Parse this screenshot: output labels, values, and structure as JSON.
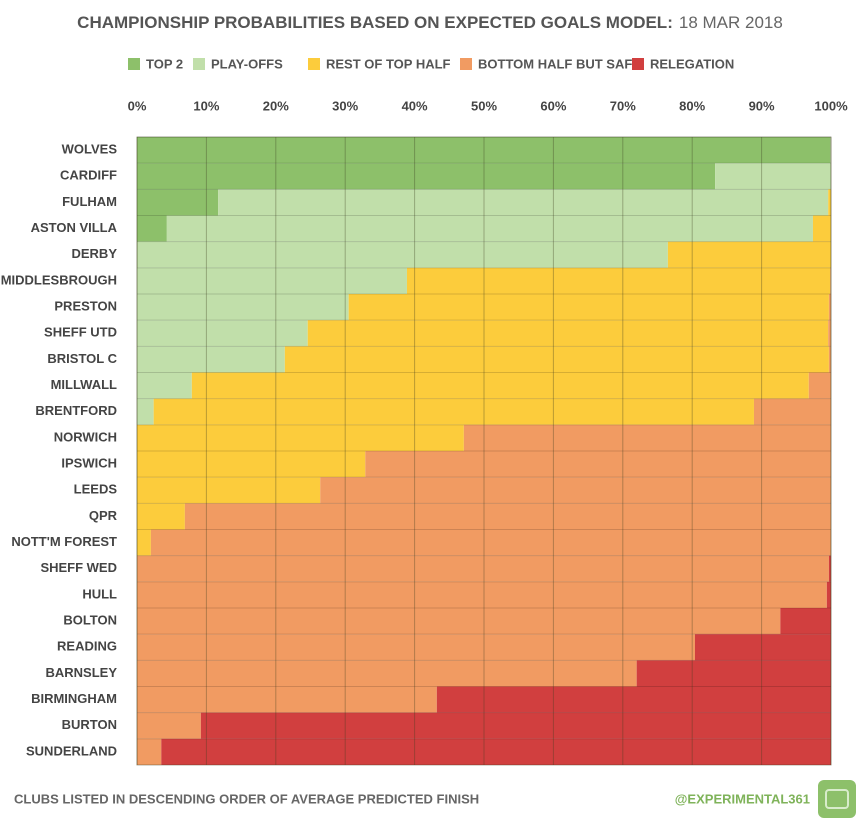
{
  "chart_data": {
    "type": "stacked-bar-horizontal",
    "title": "CHAMPIONSHIP PROBABILITIES BASED ON EXPECTED GOALS MODEL:",
    "subtitle": "18 MAR 2018",
    "footnote": "CLUBS LISTED IN DESCENDING ORDER OF AVERAGE PREDICTED FINISH",
    "credit": "@EXPERIMENTAL361",
    "categories": [
      "WOLVES",
      "CARDIFF",
      "FULHAM",
      "ASTON VILLA",
      "DERBY",
      "MIDDLESBROUGH",
      "PRESTON",
      "SHEFF UTD",
      "BRISTOL C",
      "MILLWALL",
      "BRENTFORD",
      "NORWICH",
      "IPSWICH",
      "LEEDS",
      "QPR",
      "NOTT'M FOREST",
      "SHEFF WED",
      "HULL",
      "BOLTON",
      "READING",
      "BARNSLEY",
      "BIRMINGHAM",
      "BURTON",
      "SUNDERLAND"
    ],
    "series": [
      {
        "name": "TOP 2",
        "color": "#8dc06a",
        "values": [
          99.9,
          83.3,
          11.7,
          4.3,
          0.1,
          0,
          0,
          0,
          0,
          0,
          0,
          0,
          0,
          0,
          0,
          0,
          0,
          0,
          0,
          0,
          0,
          0,
          0,
          0
        ]
      },
      {
        "name": "PLAY-OFFS",
        "color": "#c1dfaa",
        "values": [
          0.1,
          16.7,
          87.9,
          93.1,
          76.4,
          38.9,
          30.5,
          24.6,
          21.3,
          7.9,
          2.4,
          0,
          0,
          0,
          0,
          0,
          0,
          0,
          0,
          0,
          0,
          0,
          0,
          0
        ]
      },
      {
        "name": "REST OF TOP HALF",
        "color": "#fccc3c",
        "values": [
          0,
          0,
          0.4,
          2.6,
          23.5,
          61.0,
          69.2,
          75.0,
          78.4,
          88.9,
          86.5,
          47.1,
          32.9,
          26.4,
          6.9,
          2.0,
          0,
          0,
          0,
          0,
          0,
          0,
          0,
          0
        ]
      },
      {
        "name": "BOTTOM HALF BUT SAFE",
        "color": "#f19b62",
        "values": [
          0,
          0,
          0,
          0,
          0,
          0.1,
          0.3,
          0.4,
          0.3,
          3.2,
          11.1,
          52.9,
          67.1,
          73.6,
          93.1,
          98.0,
          99.7,
          99.4,
          92.7,
          80.4,
          72.0,
          43.2,
          9.2,
          3.5
        ]
      },
      {
        "name": "RELEGATION",
        "color": "#d13f3f",
        "values": [
          0,
          0,
          0,
          0,
          0,
          0,
          0,
          0,
          0,
          0,
          0,
          0,
          0,
          0,
          0,
          0,
          0.3,
          0.6,
          7.3,
          19.6,
          28.0,
          56.8,
          90.8,
          96.5
        ]
      }
    ],
    "xlim": [
      0,
      100
    ],
    "xticks": [
      {
        "value": 0,
        "label": "0%"
      },
      {
        "value": 10,
        "label": "10%"
      },
      {
        "value": 20,
        "label": "20%"
      },
      {
        "value": 30,
        "label": "30%"
      },
      {
        "value": 40,
        "label": "40%"
      },
      {
        "value": 50,
        "label": "50%"
      },
      {
        "value": 60,
        "label": "60%"
      },
      {
        "value": 70,
        "label": "70%"
      },
      {
        "value": 80,
        "label": "80%"
      },
      {
        "value": 90,
        "label": "90%"
      },
      {
        "value": 100,
        "label": "100%"
      }
    ],
    "grid": true,
    "legend": "top"
  }
}
